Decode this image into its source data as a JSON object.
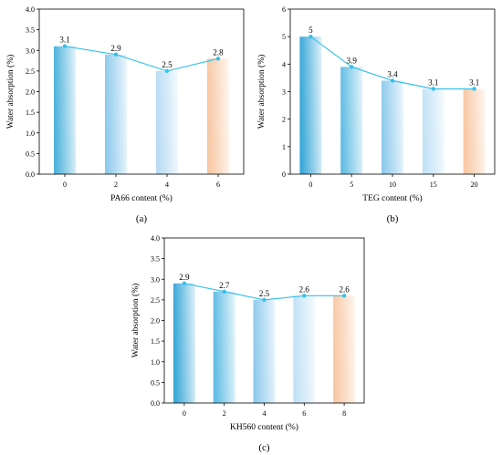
{
  "chart_data": [
    {
      "type": "bar",
      "panel_label": "(a)",
      "categories": [
        "0",
        "2",
        "4",
        "6"
      ],
      "values": [
        3.1,
        2.9,
        2.5,
        2.8
      ],
      "data_labels": [
        "3.1",
        "2.9",
        "2.5",
        "2.8"
      ],
      "xlabel": "PA66 content (%)",
      "ylabel": "Water absorption (%)",
      "ylim": [
        0,
        4.0
      ],
      "yticks": [
        "0.0",
        "0.5",
        "1.0",
        "1.5",
        "2.0",
        "2.5",
        "3.0",
        "3.5",
        "4.0"
      ],
      "overlay": "line-with-markers",
      "bar_colors": [
        "#4fb3dc",
        "#8fcbec",
        "#b9dcf4",
        "#f8c8a4"
      ],
      "line_color": "#37c1e8",
      "grid": false,
      "legend": "none"
    },
    {
      "type": "bar",
      "panel_label": "(b)",
      "categories": [
        "0",
        "5",
        "10",
        "15",
        "20"
      ],
      "values": [
        5,
        3.9,
        3.4,
        3.1,
        3.1
      ],
      "data_labels": [
        "5",
        "3.9",
        "3.4",
        "3.1",
        "3.1"
      ],
      "xlabel": "TEG content (%)",
      "ylabel": "Water absorption (%)",
      "ylim": [
        0,
        6
      ],
      "yticks": [
        "0",
        "1",
        "2",
        "3",
        "4",
        "5",
        "6"
      ],
      "overlay": "line-with-markers",
      "bar_colors": [
        "#3aa8d8",
        "#62bde4",
        "#8fcbec",
        "#c2e2f6",
        "#f8c8a4"
      ],
      "line_color": "#37c1e8",
      "grid": false,
      "legend": "none"
    },
    {
      "type": "bar",
      "panel_label": "(c)",
      "categories": [
        "0",
        "2",
        "4",
        "6",
        "8"
      ],
      "values": [
        2.9,
        2.7,
        2.5,
        2.6,
        2.6
      ],
      "data_labels": [
        "2.9",
        "2.7",
        "2.5",
        "2.6",
        "2.6"
      ],
      "xlabel": "KH560 content (%)",
      "ylabel": "Water absorption (%)",
      "ylim": [
        0,
        4.0
      ],
      "yticks": [
        "0.0",
        "0.5",
        "1.0",
        "1.5",
        "2.0",
        "2.5",
        "3.0",
        "3.5",
        "4.0"
      ],
      "overlay": "line-with-markers",
      "bar_colors": [
        "#3aa8d8",
        "#62bde4",
        "#8fcbec",
        "#c2e2f6",
        "#f8c8a4"
      ],
      "line_color": "#37c1e8",
      "grid": false,
      "legend": "none"
    }
  ]
}
